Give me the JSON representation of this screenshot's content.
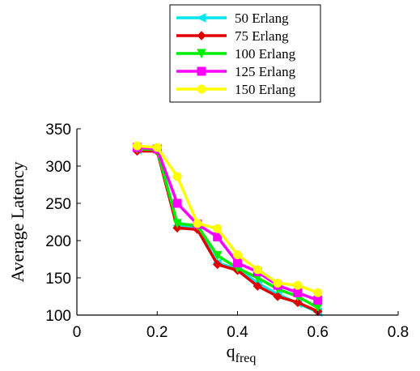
{
  "chart_data": {
    "type": "line",
    "xlabel": "q",
    "xlabel_subscript": "freq",
    "ylabel": "Average Latency",
    "xlim": [
      0,
      0.8
    ],
    "ylim": [
      100,
      350
    ],
    "xticks": [
      "0",
      "0.2",
      "0.4",
      "0.6",
      "0.8"
    ],
    "yticks": [
      "100",
      "150",
      "200",
      "250",
      "300",
      "350"
    ],
    "grid": false,
    "legend_position": "top-center",
    "x": [
      0.15,
      0.2,
      0.25,
      0.3,
      0.35,
      0.4,
      0.45,
      0.5,
      0.55,
      0.6
    ],
    "series": [
      {
        "name": "50 Erlang",
        "color": "#00e5ee",
        "marker": "triangle-left",
        "values": [
          322,
          321,
          220,
          218,
          170,
          162,
          143,
          128,
          116,
          104
        ]
      },
      {
        "name": "75 Erlang",
        "color": "#e00000",
        "marker": "diamond",
        "values": [
          320,
          320,
          217,
          215,
          168,
          160,
          139,
          125,
          117,
          105
        ]
      },
      {
        "name": "100 Erlang",
        "color": "#00ee00",
        "marker": "triangle-down",
        "values": [
          323,
          322,
          223,
          220,
          180,
          163,
          150,
          135,
          125,
          110
        ]
      },
      {
        "name": "125 Erlang",
        "color": "#ff00ff",
        "marker": "square",
        "values": [
          325,
          323,
          250,
          222,
          205,
          170,
          158,
          140,
          130,
          120
        ]
      },
      {
        "name": "150 Erlang",
        "color": "#ffff00",
        "marker": "circle",
        "values": [
          327,
          325,
          286,
          223,
          216,
          181,
          161,
          143,
          140,
          130
        ]
      }
    ]
  }
}
